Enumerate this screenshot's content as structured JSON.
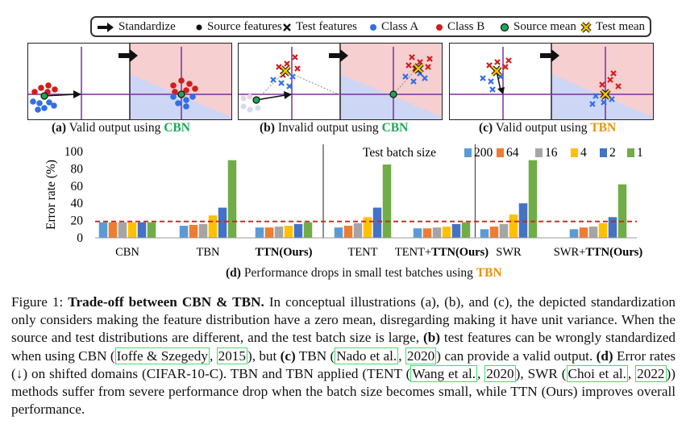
{
  "legend": {
    "items": [
      {
        "label": "Standardize",
        "symbol": "arrow-icon"
      },
      {
        "label": "Source features",
        "symbol": "black-dot-icon"
      },
      {
        "label": "Test features",
        "symbol": "x-mark-icon"
      },
      {
        "label": "Class A",
        "symbol": "blue-dot-icon",
        "color": "#2f6fe6"
      },
      {
        "label": "Class B",
        "symbol": "red-dot-icon",
        "color": "#d41c1c"
      },
      {
        "label": "Source mean",
        "symbol": "green-dot-icon",
        "color": "#1aaa55"
      },
      {
        "label": "Test mean",
        "symbol": "yellow-x-icon",
        "color": "#f2c200"
      }
    ]
  },
  "captions": {
    "a": {
      "prefix": "(a)",
      "text": " Valid output using ",
      "method": "CBN"
    },
    "b": {
      "prefix": "(b)",
      "text": " Invalid output using ",
      "method": "CBN"
    },
    "c": {
      "prefix": "(c)",
      "text": " Valid output using ",
      "method": "TBN"
    },
    "d": {
      "prefix": "(d)",
      "text": " Performance drops in small test batches using ",
      "method": "TBN"
    }
  },
  "chart_data": {
    "type": "bar",
    "ylabel": "Error rate (%)",
    "ylim": [
      0,
      100
    ],
    "yticks": [
      0,
      20,
      40,
      60,
      80,
      100
    ],
    "reference_line": 19,
    "legend_title": "Test batch size",
    "categories": [
      "CBN",
      "TBN",
      "TTN(Ours)",
      "TENT",
      "TENT+TTN(Ours)",
      "SWR",
      "SWR+TTN(Ours)"
    ],
    "category_display": [
      {
        "plain": "CBN",
        "bold": ""
      },
      {
        "plain": "TBN",
        "bold": ""
      },
      {
        "plain": "",
        "bold": "TTN(Ours)"
      },
      {
        "plain": "TENT",
        "bold": ""
      },
      {
        "plain": "TENT+",
        "bold": "TTN(Ours)"
      },
      {
        "plain": "SWR",
        "bold": ""
      },
      {
        "plain": "SWR+",
        "bold": "TTN(Ours)"
      }
    ],
    "series": [
      {
        "name": "200",
        "color": "#5b9bd5",
        "values": [
          18,
          14,
          12,
          12,
          11,
          10,
          10
        ]
      },
      {
        "name": "64",
        "color": "#ed7d31",
        "values": [
          18,
          15,
          12,
          14,
          11,
          13,
          12
        ]
      },
      {
        "name": "16",
        "color": "#a5a5a5",
        "values": [
          18,
          16,
          13,
          17,
          12,
          16,
          13
        ]
      },
      {
        "name": "4",
        "color": "#ffc000",
        "values": [
          18,
          26,
          14,
          24,
          13,
          27,
          17
        ]
      },
      {
        "name": "2",
        "color": "#4472c4",
        "values": [
          18,
          35,
          16,
          35,
          16,
          40,
          24
        ]
      },
      {
        "name": "1",
        "color": "#70ad47",
        "values": [
          18,
          90,
          18,
          85,
          18,
          90,
          62
        ]
      }
    ],
    "separators_after": [
      2,
      4
    ]
  },
  "figure_text": {
    "label": "Figure 1: ",
    "title": "Trade-off between CBN & TBN.",
    "s1": " In conceptual illustrations (a), (b), and (c), the depicted standardization only considers making the feature distribution have a zero mean, disregarding making it have unit variance. When the source and test distributions are different, and the test batch size is large, ",
    "b_label": "(b)",
    "s2": " test features can be wrongly standardized when using CBN (",
    "cite1": "Ioffe & Szegedy",
    "cite1_sep": ", ",
    "cite1_year": "2015",
    "s3": "), but ",
    "c_label": "(c)",
    "s4": " TBN (",
    "cite2": "Nado et al.",
    "cite2_sep": ", ",
    "cite2_year": "2020",
    "s5": ") can provide a valid output. ",
    "d_label": "(d)",
    "s6": " Error rates (↓) on shifted domains (CIFAR-10-C). TBN and TBN applied (TENT (",
    "cite3": "Wang et al.",
    "cite3_sep": ", ",
    "cite3_year": "2020",
    "s7": "), SWR (",
    "cite4": "Choi et al.",
    "cite4_sep": ", ",
    "cite4_year": "2022",
    "s8": ")) methods suffer from severe performance drop when the batch size becomes small, while TTN (Ours) improves overall performance."
  }
}
